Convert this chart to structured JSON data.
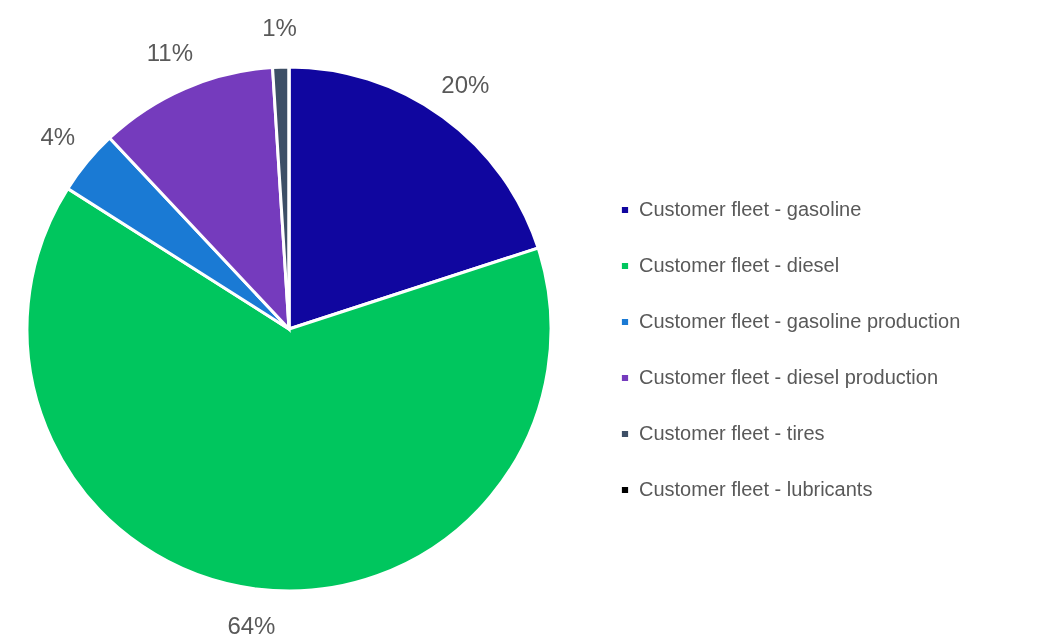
{
  "chart_data": {
    "type": "pie",
    "categories": [
      "Customer fleet - gasoline",
      "Customer fleet - diesel",
      "Customer fleet - gasoline production",
      "Customer fleet - diesel production",
      "Customer fleet - tires",
      "Customer fleet - lubricants"
    ],
    "values": [
      20,
      64,
      4,
      11,
      1,
      0
    ],
    "value_labels": [
      "20%",
      "64%",
      "4%",
      "11%",
      "1%",
      null
    ],
    "colors": [
      "#10069f",
      "#00c65e",
      "#1a7ad4",
      "#753bbd",
      "#3d4f66",
      "#000000"
    ],
    "legend": "right"
  }
}
